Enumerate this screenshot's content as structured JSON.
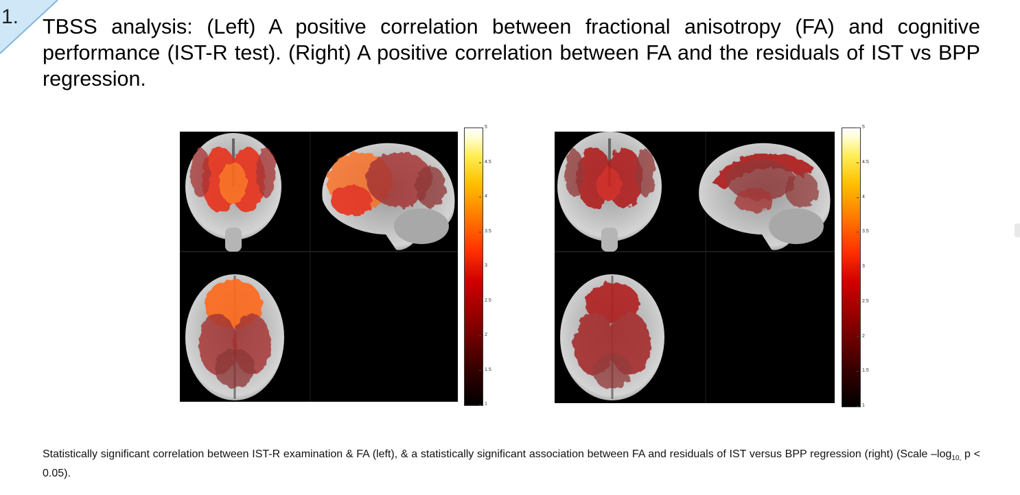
{
  "slide": {
    "number": "1.",
    "title": "TBSS analysis: (Left) A positive correlation between fractional anisotropy (FA) and cognitive performance (IST-R test). (Right) A positive correlation between FA and the residuals of IST vs BPP regression."
  },
  "figures": [
    {
      "id": "left",
      "colorbar_ticks": [
        "5",
        "4.5",
        "4",
        "3.5",
        "3",
        "2.5",
        "2",
        "1.5",
        "1"
      ],
      "overlay_colors": {
        "strong": "#ff6a1a",
        "mid": "#e8321e",
        "weak": "#a52a2a"
      }
    },
    {
      "id": "right",
      "colorbar_ticks": [
        "5",
        "4.5",
        "4",
        "3.5",
        "3",
        "2.5",
        "2",
        "1.5",
        "1"
      ],
      "overlay_colors": {
        "strong": "#d2221e",
        "mid": "#b01e1e",
        "weak": "#8f2b2b"
      }
    }
  ],
  "caption": {
    "text_a": "Statistically significant correlation between IST-R examination & FA (left), & a statistically significant association between FA and residuals of IST versus BPP regression (right) (Scale –log",
    "sub": "10,",
    "text_b": " p < 0.05)."
  }
}
